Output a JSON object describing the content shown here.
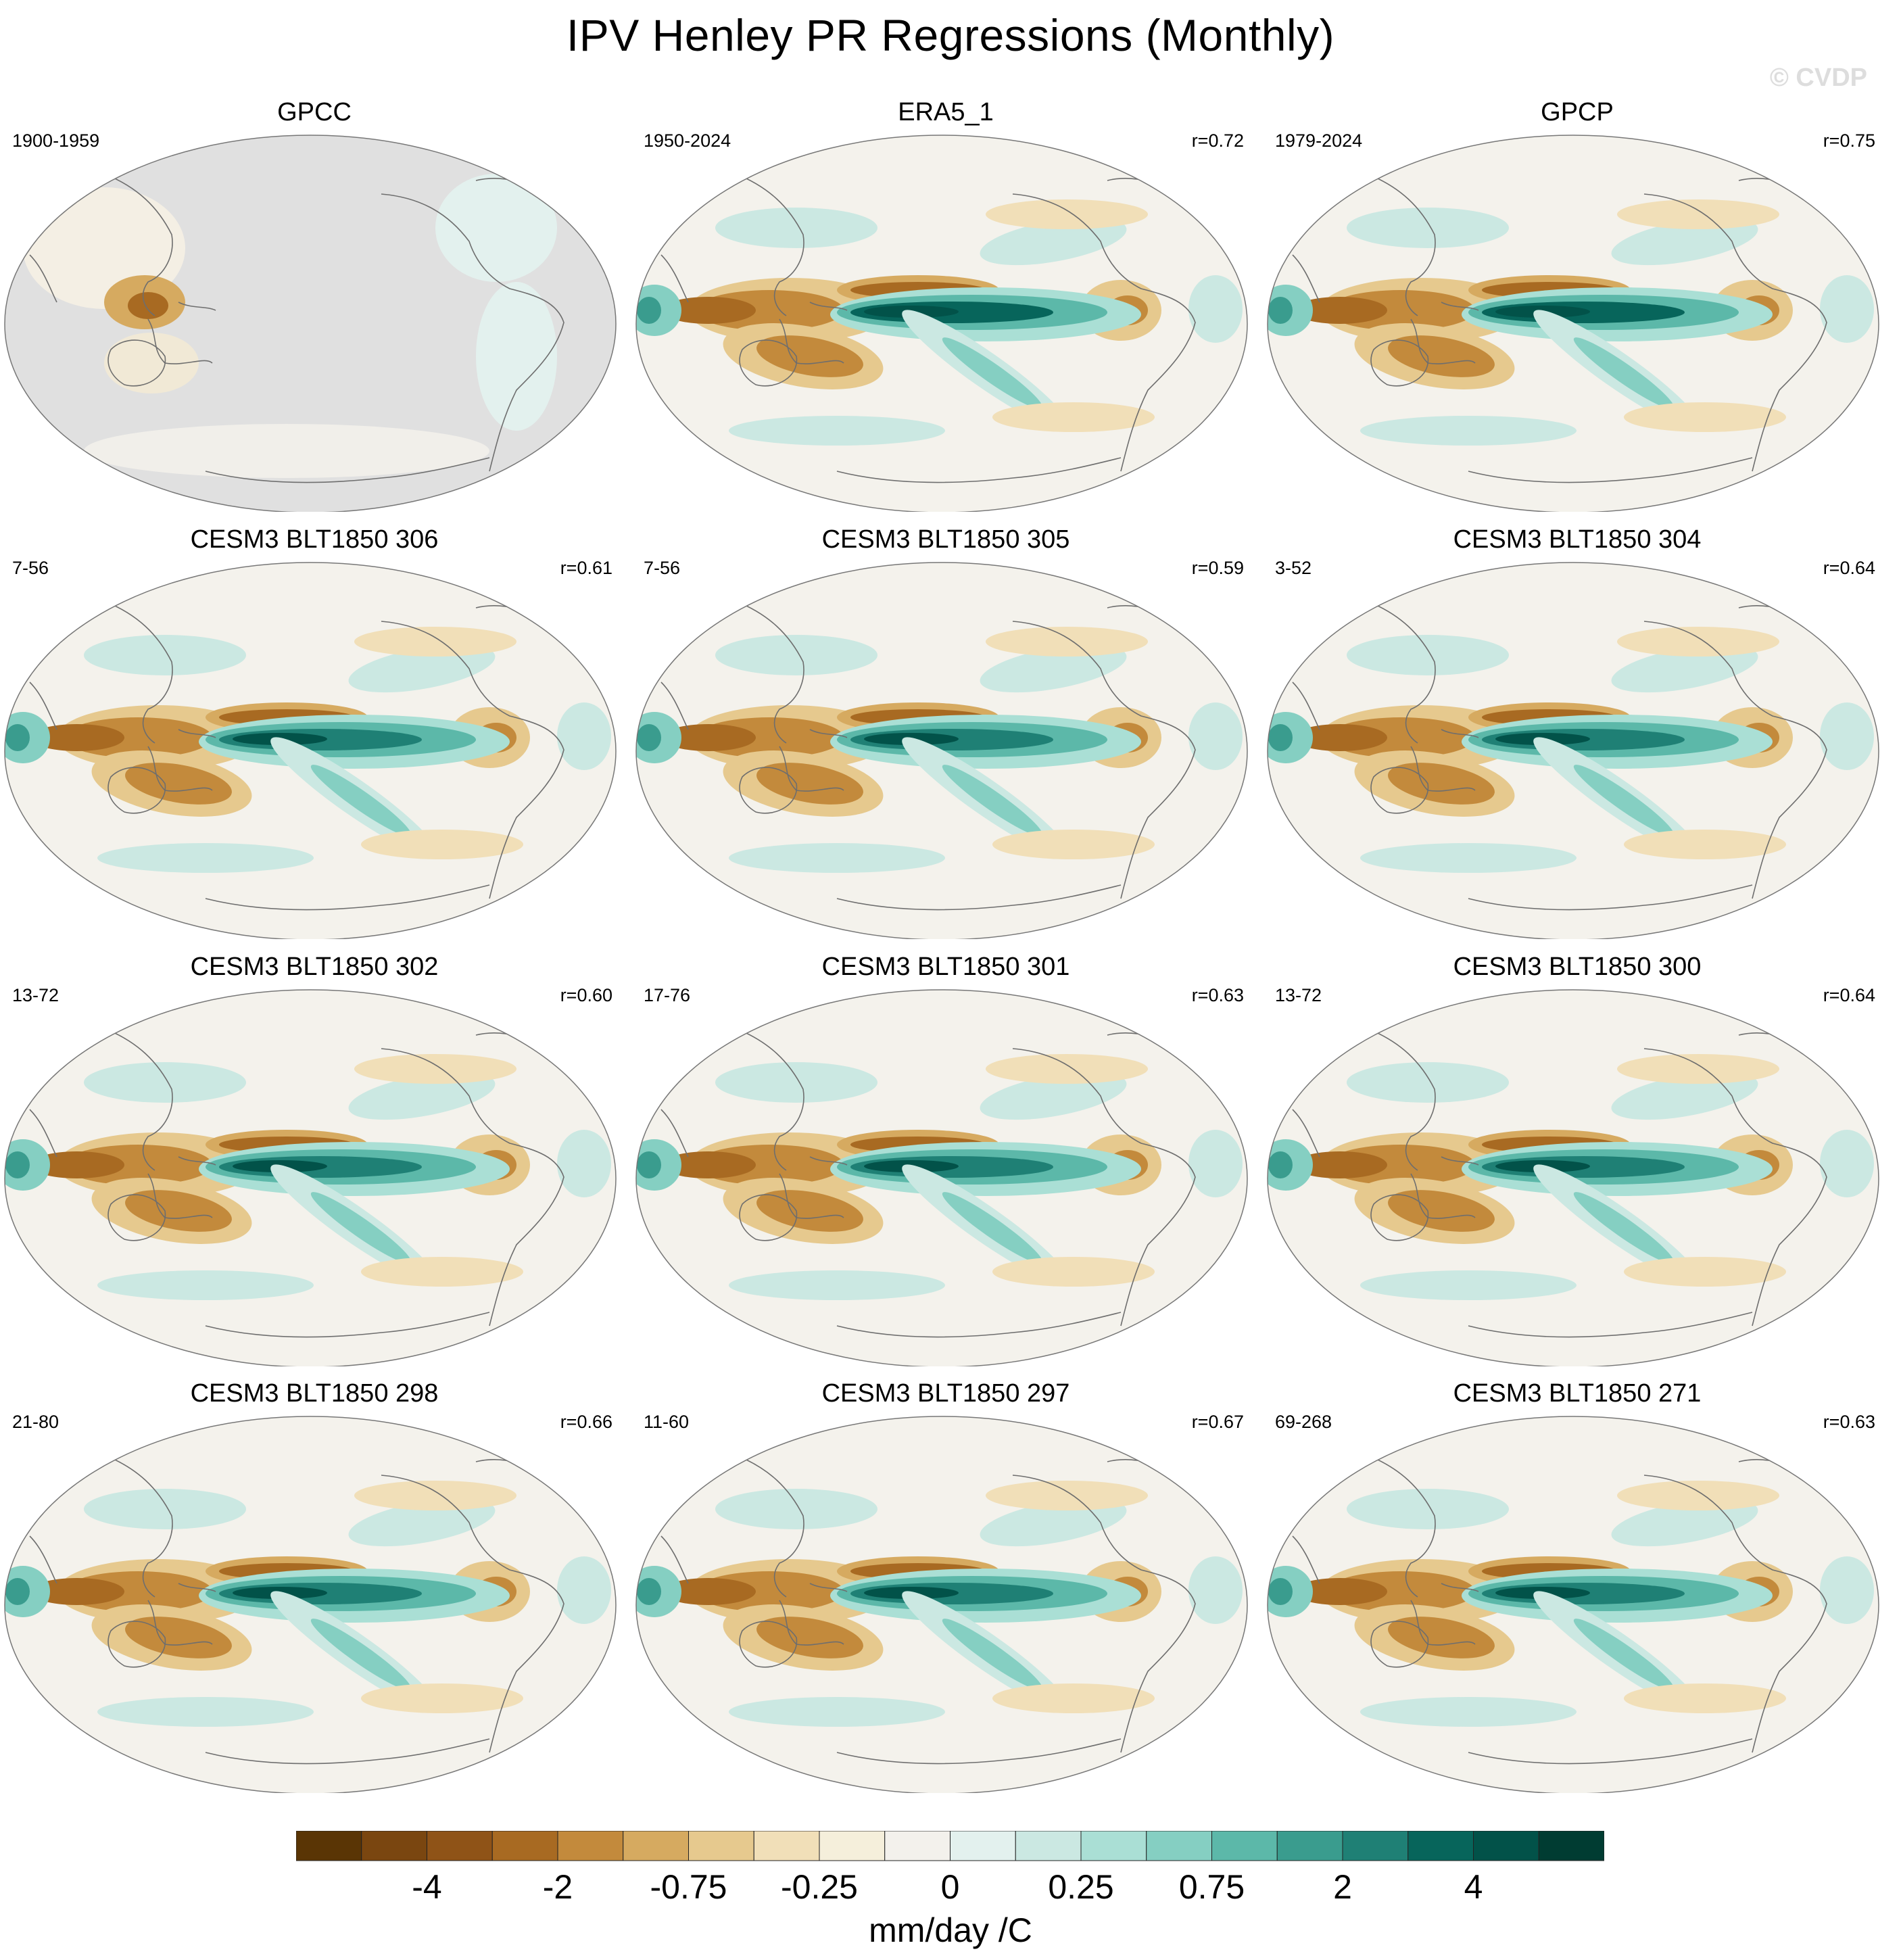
{
  "figure": {
    "title": "IPV Henley PR Regressions (Monthly)",
    "copyright": "© CVDP"
  },
  "panels": [
    {
      "name": "GPCC",
      "period": "1900-1959",
      "corr": "",
      "style": "obs"
    },
    {
      "name": "ERA5_1",
      "period": "1950-2024",
      "corr": "r=0.72",
      "style": "era5"
    },
    {
      "name": "GPCP",
      "period": "1979-2024",
      "corr": "r=0.75",
      "style": "gpcp"
    },
    {
      "name": "CESM3 BLT1850 306",
      "period": "7-56",
      "corr": "r=0.61",
      "style": "model"
    },
    {
      "name": "CESM3 BLT1850 305",
      "period": "7-56",
      "corr": "r=0.59",
      "style": "model"
    },
    {
      "name": "CESM3 BLT1850 304",
      "period": "3-52",
      "corr": "r=0.64",
      "style": "model"
    },
    {
      "name": "CESM3 BLT1850 302",
      "period": "13-72",
      "corr": "r=0.60",
      "style": "model"
    },
    {
      "name": "CESM3 BLT1850 301",
      "period": "17-76",
      "corr": "r=0.63",
      "style": "model"
    },
    {
      "name": "CESM3 BLT1850 300",
      "period": "13-72",
      "corr": "r=0.64",
      "style": "model"
    },
    {
      "name": "CESM3 BLT1850 298",
      "period": "21-80",
      "corr": "r=0.66",
      "style": "model"
    },
    {
      "name": "CESM3 BLT1850 297",
      "period": "11-60",
      "corr": "r=0.67",
      "style": "model"
    },
    {
      "name": "CESM3 BLT1850 271",
      "period": "69-268",
      "corr": "r=0.63",
      "style": "model"
    }
  ],
  "colorbar": {
    "colors": [
      "#5a3505",
      "#7a4610",
      "#8f5317",
      "#a86a22",
      "#c38a3c",
      "#d6aa60",
      "#e6c98e",
      "#f1dfb8",
      "#f5efdb",
      "#f3f1ec",
      "#e3f1ee",
      "#cbe8e2",
      "#aadfd5",
      "#85cfc2",
      "#5cb8a9",
      "#3a9c8e",
      "#1f8075",
      "#07655b",
      "#025249",
      "#003c32"
    ],
    "ticks": [
      "-4",
      "-2",
      "-0.75",
      "-0.25",
      "0",
      "0.25",
      "0.75",
      "2",
      "4"
    ],
    "units": "mm/day /C"
  },
  "colors": {
    "missing": "#e0e0e0",
    "ocean_neutral": "#f4f2ec",
    "coastline": "#6e6e6e"
  }
}
